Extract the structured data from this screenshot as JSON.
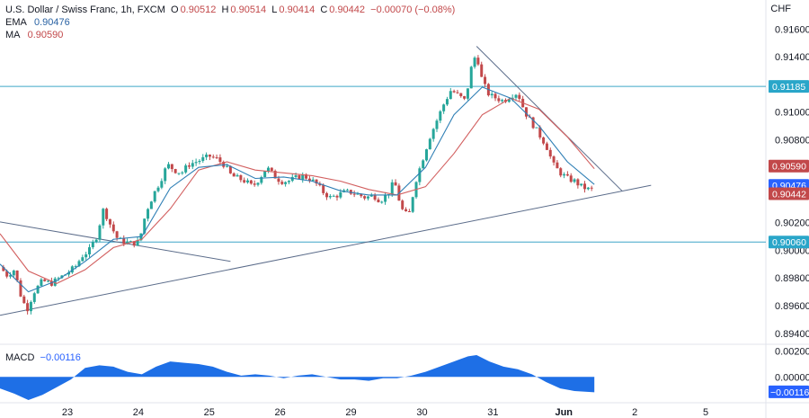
{
  "header": {
    "symbol": "U.S. Dollar / Swiss Franc, 1h, FXCM",
    "ohlc": [
      {
        "label": "O",
        "value": "0.90512"
      },
      {
        "label": "H",
        "value": "0.90514"
      },
      {
        "label": "L",
        "value": "0.90414"
      },
      {
        "label": "C",
        "value": "0.90442"
      }
    ],
    "change": "−0.00070 (−0.08%)",
    "ema_label": "EMA",
    "ema_value": "0.90476",
    "ma_label": "MA",
    "ma_value": "0.90590",
    "currency": "CHF"
  },
  "macd": {
    "label": "MACD",
    "value": "−0.00116"
  },
  "colors": {
    "up": "#26a69a",
    "down": "#c2484a",
    "ema": "#2f7fb5",
    "ma": "#d25f5f",
    "hline": "#3fa6c8",
    "trend": "#5b6c8a",
    "macd_fill": "#1e6fe6",
    "badge_price": "#c2484a",
    "badge_ema": "#2962ff",
    "badge_ma": "#c2484a",
    "badge_level": "#2aa6c9"
  },
  "chart_data": {
    "type": "candlestick",
    "price_axis": {
      "ticks": [
        "0.91600",
        "0.91400",
        "0.91000",
        "0.90800",
        "0.90200",
        "0.90000",
        "0.89800",
        "0.89600",
        "0.89400"
      ],
      "ylim": [
        0.8934,
        0.9168
      ]
    },
    "time_axis": {
      "ticks": [
        "23",
        "24",
        "25",
        "26",
        "29",
        "30",
        "31",
        "Jun",
        "2",
        "5"
      ]
    },
    "horizontal_levels": [
      0.91185,
      0.9006
    ],
    "price_badges": [
      {
        "label": "0.91185",
        "kind": "level"
      },
      {
        "label": "0.90590",
        "kind": "ma"
      },
      {
        "label": "0.90476",
        "kind": "ema"
      },
      {
        "label": "0.90442",
        "kind": "price"
      },
      {
        "label": "0.90060",
        "kind": "level"
      }
    ],
    "trendlines": [
      {
        "name": "rising support",
        "from": [
          0.0,
          0.8953
        ],
        "to": [
          9.18,
          0.9047
        ]
      },
      {
        "name": "falling resistance",
        "from": [
          6.72,
          0.91475
        ],
        "to": [
          8.77,
          0.9043
        ]
      },
      {
        "name": "earlier resistance",
        "from": [
          0.0,
          0.90205
        ],
        "to": [
          3.25,
          0.8992
        ]
      }
    ],
    "close_path": [
      [
        0.0,
        0.8988
      ],
      [
        0.1,
        0.8982
      ],
      [
        0.2,
        0.8986
      ],
      [
        0.3,
        0.8966
      ],
      [
        0.38,
        0.8957
      ],
      [
        0.48,
        0.897
      ],
      [
        0.6,
        0.8978
      ],
      [
        0.72,
        0.8976
      ],
      [
        0.84,
        0.898
      ],
      [
        0.96,
        0.8984
      ],
      [
        1.06,
        0.8988
      ],
      [
        1.16,
        0.8996
      ],
      [
        1.26,
        0.9
      ],
      [
        1.36,
        0.901
      ],
      [
        1.46,
        0.903
      ],
      [
        1.56,
        0.9018
      ],
      [
        1.66,
        0.9008
      ],
      [
        1.76,
        0.9006
      ],
      [
        1.86,
        0.9005
      ],
      [
        1.96,
        0.9006
      ],
      [
        2.06,
        0.9028
      ],
      [
        2.16,
        0.904
      ],
      [
        2.26,
        0.905
      ],
      [
        2.36,
        0.9062
      ],
      [
        2.46,
        0.9058
      ],
      [
        2.56,
        0.9056
      ],
      [
        2.66,
        0.9062
      ],
      [
        2.76,
        0.9064
      ],
      [
        2.86,
        0.9066
      ],
      [
        2.96,
        0.9068
      ],
      [
        3.06,
        0.9066
      ],
      [
        3.16,
        0.9062
      ],
      [
        3.26,
        0.9054
      ],
      [
        3.36,
        0.9052
      ],
      [
        3.46,
        0.905
      ],
      [
        3.56,
        0.9046
      ],
      [
        3.66,
        0.9052
      ],
      [
        3.76,
        0.906
      ],
      [
        3.86,
        0.9054
      ],
      [
        3.96,
        0.905
      ],
      [
        4.06,
        0.905
      ],
      [
        4.16,
        0.9052
      ],
      [
        4.26,
        0.9054
      ],
      [
        4.36,
        0.9052
      ],
      [
        4.46,
        0.9048
      ],
      [
        4.56,
        0.9042
      ],
      [
        4.66,
        0.9038
      ],
      [
        4.76,
        0.904
      ],
      [
        4.86,
        0.9042
      ],
      [
        4.96,
        0.9042
      ],
      [
        5.06,
        0.904
      ],
      [
        5.16,
        0.9038
      ],
      [
        5.26,
        0.904
      ],
      [
        5.36,
        0.9036
      ],
      [
        5.46,
        0.904
      ],
      [
        5.56,
        0.905
      ],
      [
        5.66,
        0.903
      ],
      [
        5.76,
        0.9024
      ],
      [
        5.86,
        0.905
      ],
      [
        5.96,
        0.9066
      ],
      [
        6.06,
        0.9082
      ],
      [
        6.16,
        0.9094
      ],
      [
        6.26,
        0.9106
      ],
      [
        6.36,
        0.9116
      ],
      [
        6.46,
        0.9112
      ],
      [
        6.56,
        0.9108
      ],
      [
        6.66,
        0.9136
      ],
      [
        6.72,
        0.9142
      ],
      [
        6.8,
        0.9122
      ],
      [
        6.9,
        0.9112
      ],
      [
        7.0,
        0.911
      ],
      [
        7.1,
        0.9108
      ],
      [
        7.2,
        0.9112
      ],
      [
        7.3,
        0.9114
      ],
      [
        7.4,
        0.91
      ],
      [
        7.5,
        0.9092
      ],
      [
        7.6,
        0.9084
      ],
      [
        7.7,
        0.9076
      ],
      [
        7.8,
        0.9062
      ],
      [
        7.9,
        0.9056
      ],
      [
        8.0,
        0.9052
      ],
      [
        8.1,
        0.905
      ],
      [
        8.2,
        0.9046
      ],
      [
        8.3,
        0.9044
      ],
      [
        8.38,
        0.9044
      ]
    ],
    "ema_path": [
      [
        0.0,
        0.899
      ],
      [
        0.4,
        0.897
      ],
      [
        0.8,
        0.8978
      ],
      [
        1.2,
        0.8992
      ],
      [
        1.6,
        0.9008
      ],
      [
        2.0,
        0.901
      ],
      [
        2.4,
        0.9045
      ],
      [
        2.8,
        0.906
      ],
      [
        3.2,
        0.9062
      ],
      [
        3.6,
        0.9052
      ],
      [
        4.0,
        0.9053
      ],
      [
        4.4,
        0.905
      ],
      [
        4.8,
        0.9043
      ],
      [
        5.2,
        0.904
      ],
      [
        5.6,
        0.904
      ],
      [
        6.0,
        0.906
      ],
      [
        6.4,
        0.9098
      ],
      [
        6.8,
        0.9118
      ],
      [
        7.2,
        0.911
      ],
      [
        7.6,
        0.909
      ],
      [
        8.0,
        0.9064
      ],
      [
        8.38,
        0.90476
      ]
    ],
    "ma_path": [
      [
        0.0,
        0.9012
      ],
      [
        0.4,
        0.8985
      ],
      [
        0.8,
        0.8976
      ],
      [
        1.2,
        0.8986
      ],
      [
        1.6,
        0.9002
      ],
      [
        2.0,
        0.9008
      ],
      [
        2.4,
        0.903
      ],
      [
        2.8,
        0.9058
      ],
      [
        3.2,
        0.9064
      ],
      [
        3.6,
        0.9058
      ],
      [
        4.0,
        0.9056
      ],
      [
        4.4,
        0.9054
      ],
      [
        4.8,
        0.905
      ],
      [
        5.2,
        0.9044
      ],
      [
        5.6,
        0.904
      ],
      [
        6.0,
        0.9046
      ],
      [
        6.4,
        0.907
      ],
      [
        6.8,
        0.9098
      ],
      [
        7.2,
        0.911
      ],
      [
        7.6,
        0.9102
      ],
      [
        8.0,
        0.9082
      ],
      [
        8.38,
        0.9059
      ]
    ],
    "macd_panel": {
      "ticks": [
        "0.00200",
        "0.00000"
      ],
      "ylim": [
        -0.0018,
        0.0024
      ],
      "badge": "−0.00116",
      "histogram": [
        [
          0.0,
          -0.0009
        ],
        [
          0.2,
          -0.0013
        ],
        [
          0.4,
          -0.0018
        ],
        [
          0.6,
          -0.0014
        ],
        [
          0.8,
          -0.0008
        ],
        [
          1.0,
          -0.0002
        ],
        [
          1.2,
          0.0007
        ],
        [
          1.4,
          0.0009
        ],
        [
          1.6,
          0.0008
        ],
        [
          1.8,
          0.0004
        ],
        [
          2.0,
          0.0002
        ],
        [
          2.2,
          0.0008
        ],
        [
          2.4,
          0.0012
        ],
        [
          2.6,
          0.0011
        ],
        [
          2.8,
          0.001
        ],
        [
          3.0,
          0.0008
        ],
        [
          3.2,
          0.0004
        ],
        [
          3.4,
          0.0001
        ],
        [
          3.6,
          0.0002
        ],
        [
          3.8,
          0.0001
        ],
        [
          4.0,
          -0.0001
        ],
        [
          4.2,
          0.0001
        ],
        [
          4.4,
          0.0002
        ],
        [
          4.6,
          0.0
        ],
        [
          4.8,
          -0.0002
        ],
        [
          5.0,
          -0.0002
        ],
        [
          5.2,
          -0.0003
        ],
        [
          5.4,
          -0.0001
        ],
        [
          5.6,
          -0.0001
        ],
        [
          5.8,
          0.0001
        ],
        [
          6.0,
          0.0004
        ],
        [
          6.2,
          0.0008
        ],
        [
          6.4,
          0.0012
        ],
        [
          6.6,
          0.0016
        ],
        [
          6.72,
          0.0017
        ],
        [
          6.9,
          0.0012
        ],
        [
          7.1,
          0.0008
        ],
        [
          7.3,
          0.0006
        ],
        [
          7.5,
          0.0002
        ],
        [
          7.7,
          -0.0004
        ],
        [
          7.9,
          -0.0009
        ],
        [
          8.1,
          -0.0011
        ],
        [
          8.38,
          -0.0012
        ]
      ]
    }
  }
}
